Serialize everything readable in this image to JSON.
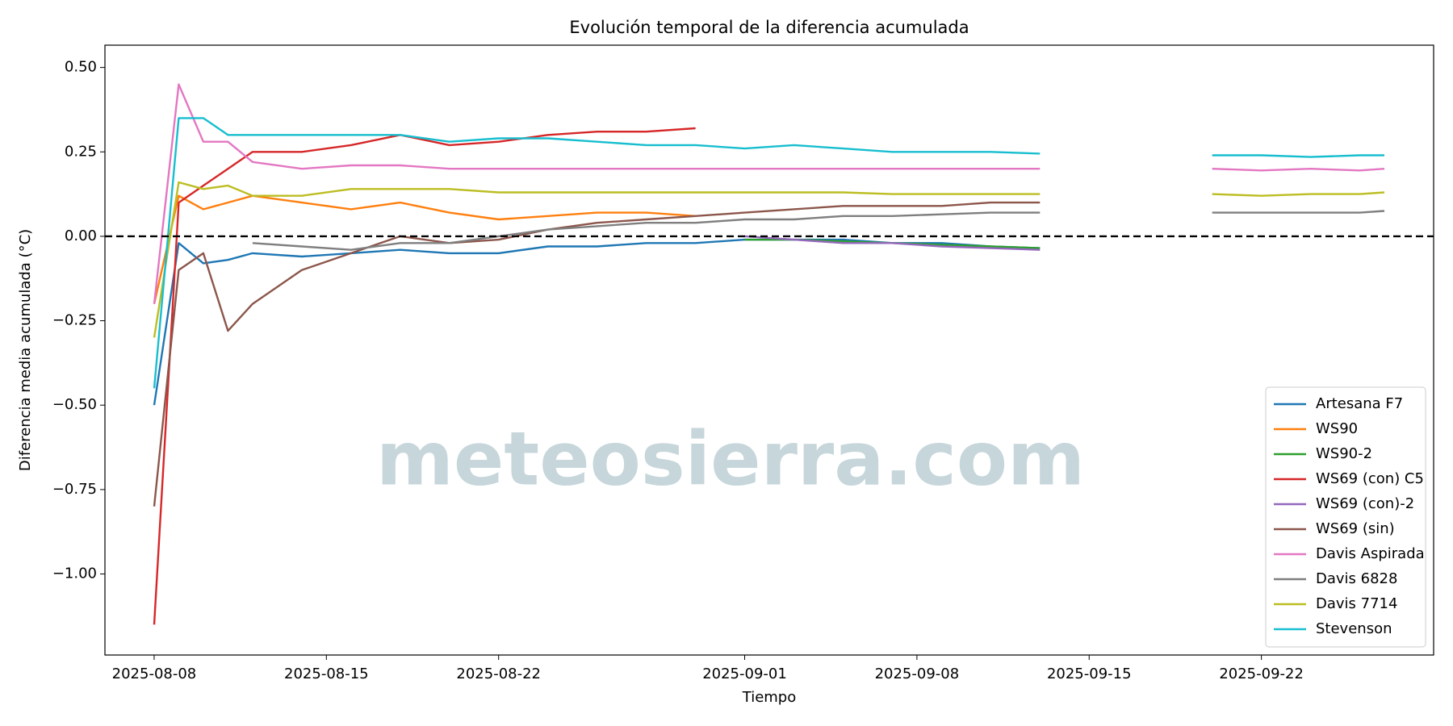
{
  "chart_data": {
    "type": "line",
    "title": "Evolución temporal de la diferencia acumulada",
    "x_label": "Tiempo",
    "y_label": "Diferencia media acumulada (°C)",
    "watermark": "meteosierra.com",
    "reference_line": 0,
    "x": [
      "2025-08-08",
      "2025-08-09",
      "2025-08-10",
      "2025-08-11",
      "2025-08-12",
      "2025-08-14",
      "2025-08-16",
      "2025-08-18",
      "2025-08-20",
      "2025-08-22",
      "2025-08-24",
      "2025-08-26",
      "2025-08-28",
      "2025-08-30",
      "2025-09-01",
      "2025-09-03",
      "2025-09-05",
      "2025-09-07",
      "2025-09-09",
      "2025-09-11",
      "2025-09-13",
      "2025-09-17",
      "2025-09-20",
      "2025-09-22",
      "2025-09-24",
      "2025-09-26",
      "2025-09-27"
    ],
    "xlim": [
      "2025-08-06",
      "2025-09-29"
    ],
    "xticks": [
      "2025-08-08",
      "2025-08-15",
      "2025-08-22",
      "2025-09-01",
      "2025-09-08",
      "2025-09-15",
      "2025-09-22"
    ],
    "ylim": [
      -1.24,
      0.566
    ],
    "yticks": [
      {
        "value": -1.0,
        "label": "−1.00"
      },
      {
        "value": -0.75,
        "label": "−0.75"
      },
      {
        "value": -0.5,
        "label": "−0.50"
      },
      {
        "value": -0.25,
        "label": "−0.25"
      },
      {
        "value": 0,
        "label": "0.00"
      },
      {
        "value": 0.25,
        "label": "0.25"
      },
      {
        "value": 0.5,
        "label": "0.50"
      }
    ],
    "legend": "lower right",
    "series": [
      {
        "name": "Artesana F7",
        "color": "#1f77b4",
        "values": [
          -0.5,
          -0.02,
          -0.08,
          -0.07,
          -0.05,
          -0.06,
          -0.05,
          -0.04,
          -0.05,
          -0.05,
          -0.03,
          -0.03,
          -0.02,
          -0.02,
          -0.01,
          -0.01,
          -0.01,
          -0.02,
          -0.02,
          -0.03,
          -0.035,
          null,
          null,
          null,
          null,
          null,
          null
        ]
      },
      {
        "name": "WS90",
        "color": "#ff7f0e",
        "values": [
          -0.2,
          0.12,
          0.08,
          0.1,
          0.12,
          0.1,
          0.08,
          0.1,
          0.07,
          0.05,
          0.06,
          0.07,
          0.07,
          0.06,
          null,
          null,
          null,
          null,
          null,
          null,
          null,
          null,
          null,
          null,
          null,
          null,
          null
        ]
      },
      {
        "name": "WS90-2",
        "color": "#2ca02c",
        "values": [
          null,
          null,
          null,
          null,
          null,
          null,
          null,
          null,
          null,
          null,
          null,
          null,
          null,
          null,
          -0.01,
          -0.01,
          -0.015,
          -0.02,
          -0.025,
          -0.03,
          -0.035,
          null,
          null,
          null,
          null,
          null,
          null
        ]
      },
      {
        "name": "WS69 (con) C5",
        "color": "#d62728",
        "values": [
          -1.15,
          0.1,
          0.15,
          0.2,
          0.25,
          0.25,
          0.27,
          0.3,
          0.27,
          0.28,
          0.3,
          0.31,
          0.31,
          0.32,
          null,
          null,
          null,
          null,
          null,
          null,
          null,
          null,
          null,
          null,
          null,
          null,
          null
        ]
      },
      {
        "name": "WS69 (con)-2",
        "color": "#9467bd",
        "values": [
          null,
          null,
          null,
          null,
          null,
          null,
          null,
          null,
          null,
          null,
          null,
          null,
          null,
          null,
          0.0,
          -0.01,
          -0.02,
          -0.02,
          -0.03,
          -0.035,
          -0.04,
          null,
          null,
          null,
          null,
          null,
          null
        ]
      },
      {
        "name": "WS69 (sin)",
        "color": "#8c564b",
        "values": [
          -0.8,
          -0.1,
          -0.05,
          -0.28,
          -0.2,
          -0.1,
          -0.05,
          0.0,
          -0.02,
          -0.01,
          0.02,
          0.04,
          0.05,
          0.06,
          0.07,
          0.08,
          0.09,
          0.09,
          0.09,
          0.1,
          0.1,
          null,
          null,
          null,
          null,
          null,
          null
        ]
      },
      {
        "name": "Davis Aspirada",
        "color": "#e377c2",
        "values": [
          -0.2,
          0.45,
          0.28,
          0.28,
          0.22,
          0.2,
          0.21,
          0.21,
          0.2,
          0.2,
          0.2,
          0.2,
          0.2,
          0.2,
          0.2,
          0.2,
          0.2,
          0.2,
          0.2,
          0.2,
          0.2,
          null,
          0.2,
          0.195,
          0.2,
          0.195,
          0.2
        ]
      },
      {
        "name": "Davis 6828",
        "color": "#7f7f7f",
        "values": [
          null,
          null,
          null,
          null,
          -0.02,
          -0.03,
          -0.04,
          -0.02,
          -0.02,
          0.0,
          0.02,
          0.03,
          0.04,
          0.04,
          0.05,
          0.05,
          0.06,
          0.06,
          0.065,
          0.07,
          0.07,
          null,
          0.07,
          0.07,
          0.07,
          0.07,
          0.075
        ]
      },
      {
        "name": "Davis 7714",
        "color": "#bcbd22",
        "values": [
          -0.3,
          0.16,
          0.14,
          0.15,
          0.12,
          0.12,
          0.14,
          0.14,
          0.14,
          0.13,
          0.13,
          0.13,
          0.13,
          0.13,
          0.13,
          0.13,
          0.13,
          0.125,
          0.125,
          0.125,
          0.125,
          null,
          0.125,
          0.12,
          0.125,
          0.125,
          0.13
        ]
      },
      {
        "name": "Stevenson",
        "color": "#17becf",
        "values": [
          -0.45,
          0.35,
          0.35,
          0.3,
          0.3,
          0.3,
          0.3,
          0.3,
          0.28,
          0.29,
          0.29,
          0.28,
          0.27,
          0.27,
          0.26,
          0.27,
          0.26,
          0.25,
          0.25,
          0.25,
          0.245,
          null,
          0.24,
          0.24,
          0.235,
          0.24,
          0.24
        ]
      }
    ]
  }
}
